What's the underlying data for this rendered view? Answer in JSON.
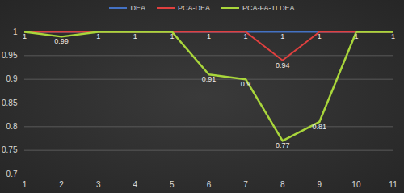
{
  "chart_data": {
    "type": "line",
    "x": [
      1,
      2,
      3,
      4,
      5,
      6,
      7,
      8,
      9,
      10,
      11
    ],
    "xlim": [
      1,
      11
    ],
    "xticks": [
      1,
      2,
      3,
      4,
      5,
      6,
      7,
      8,
      9,
      10,
      11
    ],
    "ylim": [
      0.7,
      1
    ],
    "yticks": [
      0.7,
      0.75,
      0.8,
      0.85,
      0.9,
      0.95,
      1
    ],
    "grid": true,
    "legend": "top",
    "series": [
      {
        "name": "DEA",
        "color": "#4472c4",
        "values": [
          1,
          1,
          1,
          1,
          1,
          1,
          1,
          1,
          1,
          1,
          1
        ],
        "value_labels": [
          null,
          null,
          null,
          null,
          null,
          null,
          null,
          "1",
          "1",
          null,
          null
        ]
      },
      {
        "name": "PCA-DEA",
        "color": "#e0403f",
        "values": [
          1,
          1,
          1,
          1,
          1,
          1,
          1,
          0.94,
          1,
          1,
          1
        ],
        "value_labels": [
          null,
          null,
          null,
          null,
          null,
          "1",
          "1",
          "0.94",
          null,
          null,
          null
        ]
      },
      {
        "name": "PCA-FA-TLDEA",
        "color": "#a9d63b",
        "values": [
          1,
          0.99,
          1,
          1,
          1,
          0.91,
          0.9,
          0.77,
          0.81,
          1,
          1
        ],
        "value_labels": [
          "1",
          "0.99",
          "1",
          "1",
          "1",
          "0.91",
          "0.9",
          "0.77",
          "0.81",
          "1",
          "1"
        ]
      }
    ]
  }
}
